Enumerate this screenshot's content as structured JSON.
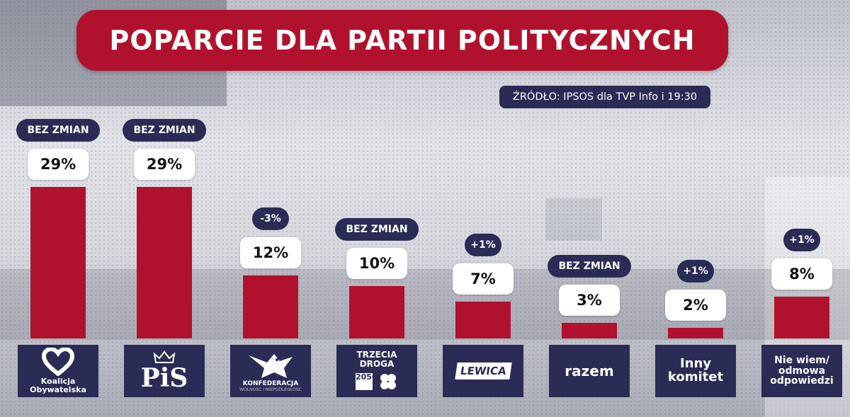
{
  "title": "POPARCIE DLA PARTII POLITYCZNYCH",
  "source": "ŹRÓDŁO: IPSOS dla TVP Info i 19:30",
  "colors": {
    "bar": "#b0112c",
    "dark": "#2a2c55",
    "label_bg": "#ffffff"
  },
  "chart_data": {
    "type": "bar",
    "title": "POPARCIE DLA PARTII POLITYCZNYCH",
    "xlabel": "",
    "ylabel": "",
    "ylim": [
      0,
      35
    ],
    "grid": false,
    "categories": [
      "Koalicja Obywatelska",
      "PiS",
      "KONFEDERACJA",
      "TRZECIA DROGA",
      "LEWICA",
      "razem",
      "Inny komitet",
      "Nie wiem/ odmowa odpowiedzi"
    ],
    "values": [
      29,
      29,
      12,
      10,
      7,
      3,
      2,
      8
    ],
    "value_labels": [
      "29%",
      "29%",
      "12%",
      "10%",
      "7%",
      "3%",
      "2%",
      "8%"
    ],
    "changes": [
      "BEZ ZMIAN",
      "BEZ ZMIAN",
      "-3%",
      "BEZ ZMIAN",
      "+1%",
      "BEZ ZMIAN",
      "+1%",
      "+1%"
    ]
  },
  "logos": {
    "ko": {
      "line1": "Koalicja",
      "line2": "Obywatelska",
      "icon": "heart-icon"
    },
    "pis": {
      "text": "PiS",
      "icon": "crown-eagle-icon"
    },
    "konf": {
      "text": "KONFEDERACJA",
      "sub": "WOLNOŚĆ I NIEPODLEGŁOŚĆ",
      "icon": "eagle-icon"
    },
    "td": {
      "line1": "TRZECIA",
      "line2": "DROGA",
      "num": "2050",
      "icon": "clover-icon"
    },
    "lewica": {
      "text": "LEWICA"
    },
    "razem": {
      "text": "razem"
    },
    "inny": {
      "line1": "Inny",
      "line2": "komitet"
    },
    "niewiem": {
      "line1": "Nie wiem/",
      "line2": "odmowa",
      "line3": "odpowiedzi"
    }
  }
}
